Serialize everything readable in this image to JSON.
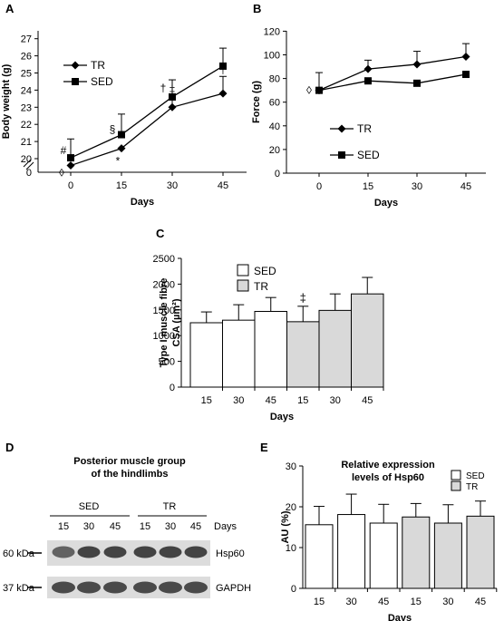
{
  "colors": {
    "sed_fill": "#ffffff",
    "tr_fill": "#d9d9d9",
    "line": "#000000",
    "blot": "#3a3a3a"
  },
  "panel_letters": {
    "a": "A",
    "b": "B",
    "c": "C",
    "d": "D",
    "e": "E"
  },
  "chart_data": [
    {
      "id": "A",
      "type": "line",
      "xlabel": "Days",
      "ylabel": "Body weight (g)",
      "x": [
        0,
        15,
        30,
        45
      ],
      "ylim": [
        19,
        27
      ],
      "yticks": [
        20,
        21,
        22,
        23,
        24,
        25,
        26,
        27
      ],
      "yticks_extra": [
        "0"
      ],
      "axis_break": true,
      "grid": false,
      "legend_position": "top-left",
      "series": [
        {
          "name": "TR",
          "marker": "diamond",
          "values": [
            19.6,
            20.6,
            23.0,
            23.8
          ],
          "err": [
            0,
            0,
            0.6,
            1.0
          ]
        },
        {
          "name": "SED",
          "marker": "square",
          "values": [
            20.05,
            21.4,
            23.6,
            25.4
          ],
          "err": [
            1.1,
            1.2,
            1.0,
            1.05
          ]
        }
      ],
      "annotations": [
        {
          "text": "#",
          "x": 0,
          "series": "SED"
        },
        {
          "text": "◊",
          "x": 0,
          "series": "TR"
        },
        {
          "text": "§",
          "x": 15,
          "series": "SED"
        },
        {
          "text": "*",
          "x": 15,
          "series": "TR"
        },
        {
          "text": "†",
          "x": 30,
          "series": "SED"
        },
        {
          "text": "‡",
          "x": 30,
          "series": "TR"
        },
        {
          "text": "†",
          "x": 45,
          "series": "TR"
        }
      ]
    },
    {
      "id": "B",
      "type": "line",
      "xlabel": "Days",
      "ylabel": "Force (g)",
      "x": [
        0,
        15,
        30,
        45
      ],
      "ylim": [
        0,
        120
      ],
      "yticks": [
        0,
        20,
        40,
        60,
        80,
        100,
        120
      ],
      "grid": false,
      "legend_position": "bottom-left",
      "series": [
        {
          "name": "TR",
          "marker": "diamond",
          "values": [
            70,
            88,
            92,
            98.5
          ],
          "err": [
            15,
            7.5,
            11,
            11
          ]
        },
        {
          "name": "SED",
          "marker": "square",
          "values": [
            70,
            78,
            76,
            83.5
          ],
          "err": [
            0,
            0,
            0,
            0
          ]
        }
      ],
      "annotations": [
        {
          "text": "◊",
          "x": 0,
          "series": "TR"
        }
      ]
    },
    {
      "id": "C",
      "type": "bar",
      "xlabel": "Days",
      "ylabel": "Type I muscle fibre CSA (µm²)",
      "categories": [
        "15",
        "30",
        "45",
        "15",
        "30",
        "45"
      ],
      "groups": [
        "SED",
        "SED",
        "SED",
        "TR",
        "TR",
        "TR"
      ],
      "values": [
        1250,
        1300,
        1470,
        1270,
        1490,
        1810
      ],
      "err": [
        210,
        300,
        270,
        300,
        320,
        320
      ],
      "ylim": [
        0,
        2500
      ],
      "yticks": [
        0,
        500,
        1000,
        1500,
        2000,
        2500
      ],
      "grid": false,
      "legend_position": "top-center",
      "legend": [
        {
          "name": "SED",
          "group": "SED"
        },
        {
          "name": "TR",
          "group": "TR"
        }
      ],
      "annotations": [
        {
          "text": "‡",
          "bar": 3
        }
      ]
    },
    {
      "id": "E",
      "type": "bar",
      "title": "Relative expression levels of Hsp60",
      "xlabel": "Days",
      "ylabel": "AU (%)",
      "categories": [
        "15",
        "30",
        "45",
        "15",
        "30",
        "45"
      ],
      "groups": [
        "SED",
        "SED",
        "SED",
        "TR",
        "TR",
        "TR"
      ],
      "values": [
        15.6,
        18.1,
        16.0,
        17.5,
        16.0,
        17.7
      ],
      "err": [
        4.5,
        5.0,
        4.6,
        3.3,
        4.5,
        3.7
      ],
      "ylim": [
        0,
        30
      ],
      "yticks": [
        0,
        10,
        20,
        30
      ],
      "grid": false,
      "legend_position": "top-right",
      "legend": [
        {
          "name": "SED",
          "group": "SED"
        },
        {
          "name": "TR",
          "group": "TR"
        }
      ]
    }
  ],
  "blot": {
    "title_line1": "Posterior muscle group",
    "title_line2": "of the hindlimbs",
    "group_sed": "SED",
    "group_tr": "TR",
    "lanes": [
      "15",
      "30",
      "45",
      "15",
      "30",
      "45"
    ],
    "days_label": "Days",
    "band1_size": "60 kDa",
    "band1_name": "Hsp60",
    "band2_size": "37 kDa",
    "band2_name": "GAPDH"
  }
}
